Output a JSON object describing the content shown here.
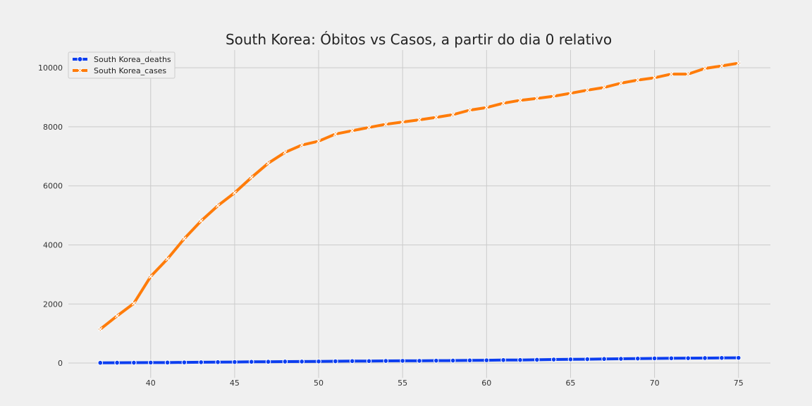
{
  "chart_data": {
    "type": "line",
    "title": "South Korea: Óbitos vs Casos, a partir do dia 0 relativo",
    "xlabel": "",
    "ylabel": "",
    "xlim": [
      35.1,
      76.9
    ],
    "ylim": [
      -500,
      10600
    ],
    "x_ticks": [
      40,
      45,
      50,
      55,
      60,
      65,
      70,
      75
    ],
    "y_ticks": [
      0,
      2000,
      4000,
      6000,
      8000,
      10000
    ],
    "grid": true,
    "legend_position": "top-left",
    "x": [
      37,
      38,
      39,
      40,
      41,
      42,
      43,
      44,
      45,
      46,
      47,
      48,
      49,
      50,
      51,
      52,
      53,
      54,
      55,
      56,
      57,
      58,
      59,
      60,
      61,
      62,
      63,
      64,
      65,
      66,
      67,
      68,
      69,
      70,
      71,
      72,
      73,
      74,
      75
    ],
    "series": [
      {
        "name": "South Korea_deaths",
        "color": "#0c3ef0",
        "marker": "circle",
        "values": [
          8,
          11,
          12,
          16,
          17,
          22,
          28,
          32,
          35,
          42,
          44,
          50,
          51,
          54,
          60,
          66,
          67,
          72,
          75,
          75,
          81,
          84,
          91,
          94,
          102,
          104,
          111,
          120,
          126,
          131,
          139,
          144,
          152,
          158,
          162,
          165,
          169,
          174,
          177
        ]
      },
      {
        "name": "South Korea_cases",
        "color": "#ff7c0a",
        "marker": "x",
        "values": [
          1146,
          1595,
          2022,
          2931,
          3526,
          4212,
          4812,
          5328,
          5766,
          6284,
          6767,
          7134,
          7382,
          7513,
          7755,
          7869,
          7979,
          8086,
          8162,
          8236,
          8320,
          8413,
          8565,
          8652,
          8799,
          8897,
          8961,
          9037,
          9137,
          9241,
          9332,
          9478,
          9583,
          9661,
          9786,
          9786,
          9976,
          10062,
          10156
        ]
      }
    ]
  }
}
